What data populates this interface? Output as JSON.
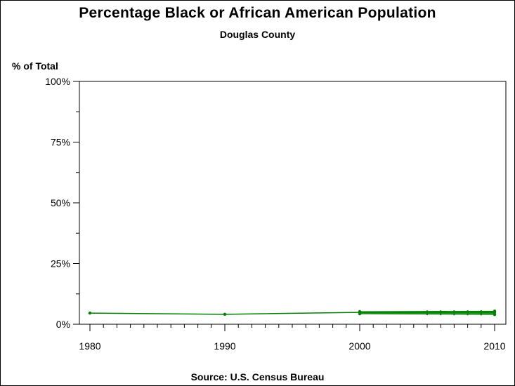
{
  "chart_data": {
    "type": "line",
    "title": "Percentage Black or African American Population",
    "subtitle": "Douglas County",
    "ylabel": "% of Total",
    "xlabel": "",
    "source": "Source: U.S. Census Bureau",
    "ylim": [
      0,
      100
    ],
    "xlim": [
      1980,
      2010
    ],
    "y_ticks": [
      {
        "value": 0,
        "label": "0%"
      },
      {
        "value": 25,
        "label": "25%"
      },
      {
        "value": 50,
        "label": "50%"
      },
      {
        "value": 75,
        "label": "75%"
      },
      {
        "value": 100,
        "label": "100%"
      }
    ],
    "x_ticks": [
      {
        "value": 1980,
        "label": "1980"
      },
      {
        "value": 1990,
        "label": "1990"
      },
      {
        "value": 2000,
        "label": "2000"
      },
      {
        "value": 2010,
        "label": "2010"
      }
    ],
    "grid": false,
    "series": [
      {
        "color": "#008000",
        "points": [
          {
            "x": 1980,
            "y": 4.6
          },
          {
            "x": 1990,
            "y": 4.1
          },
          {
            "x": 2000,
            "y": 4.9
          },
          {
            "x": 2000,
            "y": 4.3
          },
          {
            "x": 2000,
            "y": 5.2
          },
          {
            "x": 2010,
            "y": 4.9
          },
          {
            "x": 2010,
            "y": 4.0
          },
          {
            "x": 2010,
            "y": 5.4
          }
        ]
      }
    ]
  }
}
